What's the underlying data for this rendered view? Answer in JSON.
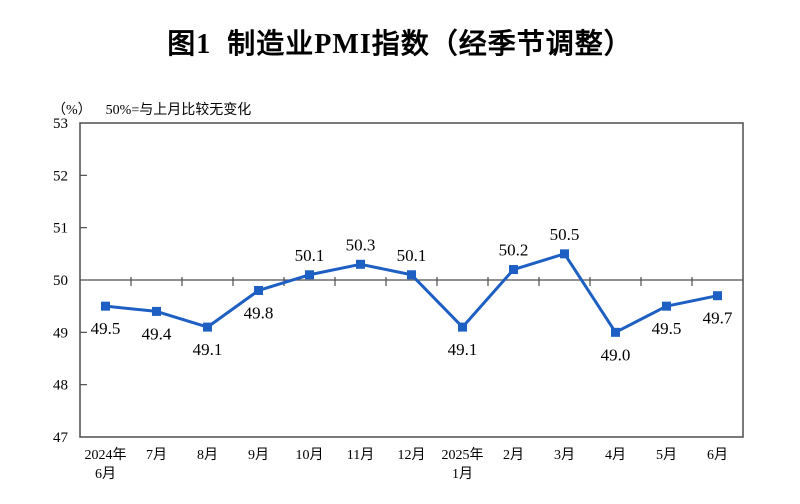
{
  "chart_data": {
    "type": "line",
    "title": "图1  制造业PMI指数（经季节调整）",
    "unit_label": "（%）",
    "note": "50%=与上月比较无变化",
    "categories": [
      "2024年6月",
      "7月",
      "8月",
      "9月",
      "10月",
      "11月",
      "12月",
      "2025年1月",
      "2月",
      "3月",
      "4月",
      "5月",
      "6月"
    ],
    "category_lines": [
      [
        "2024年",
        "6月"
      ],
      [
        "7月"
      ],
      [
        "8月"
      ],
      [
        "9月"
      ],
      [
        "10月"
      ],
      [
        "11月"
      ],
      [
        "12月"
      ],
      [
        "2025年",
        "1月"
      ],
      [
        "2月"
      ],
      [
        "3月"
      ],
      [
        "4月"
      ],
      [
        "5月"
      ],
      [
        "6月"
      ]
    ],
    "values": [
      49.5,
      49.4,
      49.1,
      49.8,
      50.1,
      50.3,
      50.1,
      49.1,
      50.2,
      50.5,
      49.0,
      49.5,
      49.7
    ],
    "series_name": "制造业PMI",
    "ylim": [
      47,
      53
    ],
    "yticks": [
      47,
      48,
      49,
      50,
      51,
      52,
      53
    ],
    "reference_line": 50,
    "grid": "off",
    "legend": "none",
    "line_color": "#1d5fc2",
    "axis_color": "#4d4d4d",
    "text_color": "#000000"
  }
}
